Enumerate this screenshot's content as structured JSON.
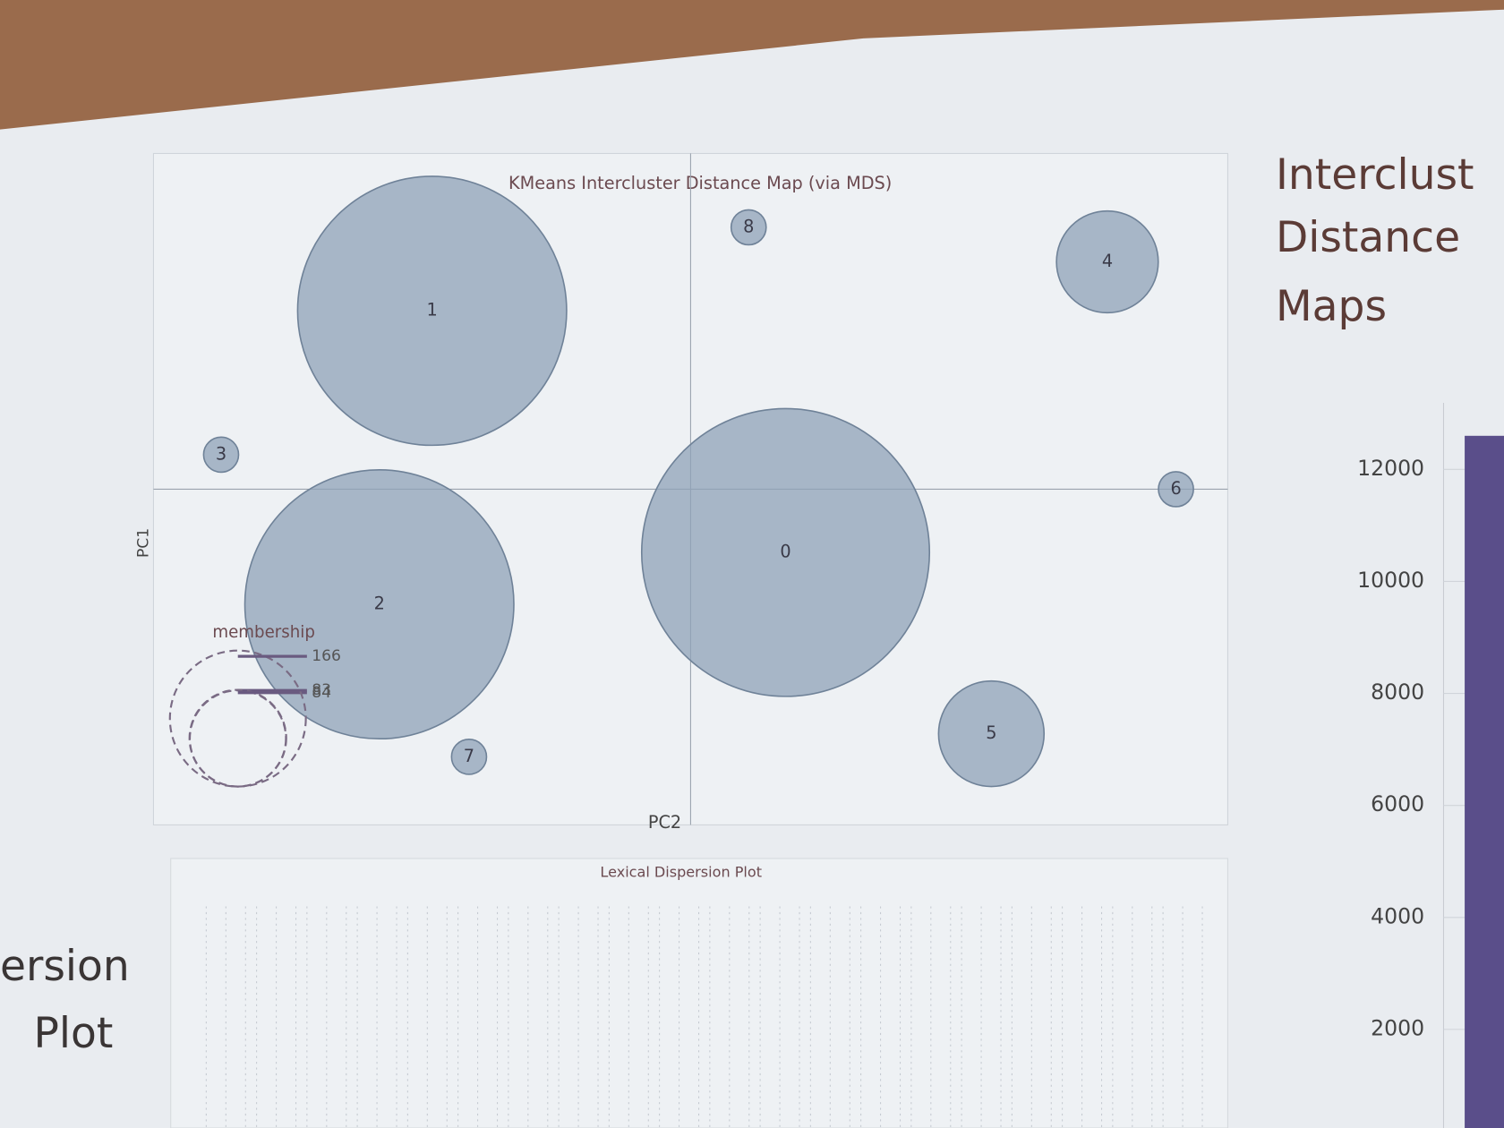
{
  "slide": {
    "heading": [
      "Interclust",
      "Distance",
      "Maps"
    ],
    "side_label": [
      "ersion",
      "Plot"
    ]
  },
  "chart_data": [
    {
      "type": "bubble",
      "title": "KMeans Intercluster Distance Map (via MDS)",
      "xlabel": "PC2",
      "ylabel": "PC1",
      "labels": [
        "0",
        "1",
        "2",
        "3",
        "4",
        "5",
        "6",
        "7",
        "8"
      ],
      "x": [
        0.18,
        -0.49,
        -0.59,
        -0.89,
        0.79,
        0.57,
        0.92,
        -0.42,
        0.11
      ],
      "y": [
        -0.22,
        0.62,
        -0.4,
        0.12,
        0.79,
        -0.85,
        0.0,
        -0.93,
        0.91
      ],
      "size": [
        744,
        650,
        650,
        11,
        93,
        100,
        11,
        11,
        11
      ],
      "xlim": [
        -1,
        1
      ],
      "ylim": [
        -1,
        1
      ],
      "color": "#8fa2b8",
      "legend_title": "membership",
      "legend_sizes": [
        83,
        84,
        166
      ]
    },
    {
      "type": "dispersion",
      "title": "Lexical Dispersion Plot"
    },
    {
      "type": "bar",
      "categories": [
        null
      ],
      "values": [
        12600
      ],
      "color": "#5a4e8a",
      "ylim": [
        0,
        13000
      ],
      "yticks": [
        2000,
        4000,
        6000,
        8000,
        10000,
        12000
      ],
      "grid": true
    }
  ]
}
